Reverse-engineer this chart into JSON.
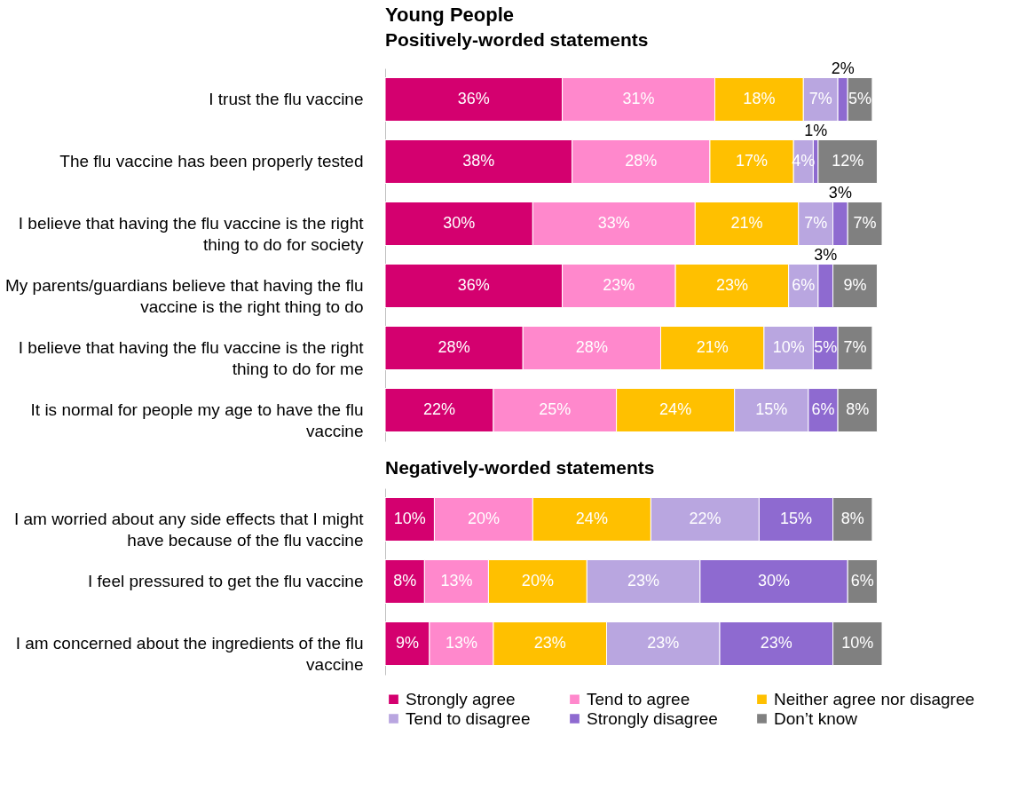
{
  "chart_data": [
    {
      "type": "bar",
      "orientation": "horizontal",
      "stacked": true,
      "title": "Young People",
      "subtitle": "Positively-worded statements",
      "categories": [
        "I trust the flu vaccine",
        "The flu vaccine has been properly tested",
        "I believe that having the flu vaccine is the right thing to do for society",
        "My parents/guardians believe that having the flu vaccine is the right thing to do",
        "I believe that having the flu vaccine is the right thing to do for me",
        "It is normal for people my age to have the flu vaccine"
      ],
      "series": [
        {
          "color": "#d4006f",
          "values": [
            36,
            38,
            30,
            36,
            28,
            22
          ],
          "value_labels": [
            "36%",
            "38%",
            "30%",
            "36%",
            "28%",
            "22%"
          ]
        },
        {
          "color": "#ff88cc",
          "values": [
            31,
            28,
            33,
            23,
            28,
            25
          ],
          "value_labels": [
            "31%",
            "28%",
            "33%",
            "23%",
            "28%",
            "25%"
          ]
        },
        {
          "color": "#ffc000",
          "values": [
            18,
            17,
            21,
            23,
            21,
            24
          ],
          "value_labels": [
            "18%",
            "17%",
            "21%",
            "23%",
            "21%",
            "24%"
          ]
        },
        {
          "color": "#b9a6e0",
          "values": [
            7,
            4,
            7,
            6,
            10,
            15
          ],
          "value_labels": [
            "7%",
            "4%",
            "7%",
            "6%",
            "10%",
            "15%"
          ]
        },
        {
          "color": "#8e6ad0",
          "values": [
            2,
            1,
            3,
            3,
            5,
            6
          ],
          "value_labels": [
            "2%",
            "1%",
            "3%",
            "3%",
            "5%",
            "6%"
          ]
        },
        {
          "color": "#808080",
          "values": [
            5,
            12,
            7,
            9,
            7,
            8
          ],
          "value_labels": [
            "5%",
            "12%",
            "7%",
            "9%",
            "7%",
            "8%"
          ]
        }
      ]
    },
    {
      "type": "bar",
      "orientation": "horizontal",
      "stacked": true,
      "title": "Negatively-worded statements",
      "legend": "bottom",
      "categories": [
        "I am worried about any side effects that I might have because of the flu vaccine",
        "I feel pressured to get the flu vaccine",
        "I am concerned about the ingredients of the flu vaccine"
      ],
      "series": [
        {
          "name": "Strongly agree",
          "color": "#d4006f",
          "values": [
            10,
            8,
            9
          ],
          "value_labels": [
            "10%",
            "8%",
            "9%"
          ]
        },
        {
          "name": "Tend to agree",
          "color": "#ff88cc",
          "values": [
            20,
            13,
            13
          ],
          "value_labels": [
            "20%",
            "13%",
            "13%"
          ]
        },
        {
          "name": "Neither agree nor disagree",
          "color": "#ffc000",
          "values": [
            24,
            20,
            23
          ],
          "value_labels": [
            "24%",
            "20%",
            "23%"
          ]
        },
        {
          "name": "Tend to disagree",
          "color": "#b9a6e0",
          "values": [
            22,
            23,
            23
          ],
          "value_labels": [
            "22%",
            "23%",
            "23%"
          ]
        },
        {
          "name": "Strongly disagree",
          "color": "#8e6ad0",
          "values": [
            15,
            30,
            23
          ],
          "value_labels": [
            "15%",
            "30%",
            "23%"
          ]
        },
        {
          "name": "Don’t know",
          "color": "#808080",
          "values": [
            8,
            6,
            10
          ],
          "value_labels": [
            "8%",
            "6%",
            "10%"
          ]
        }
      ]
    }
  ]
}
